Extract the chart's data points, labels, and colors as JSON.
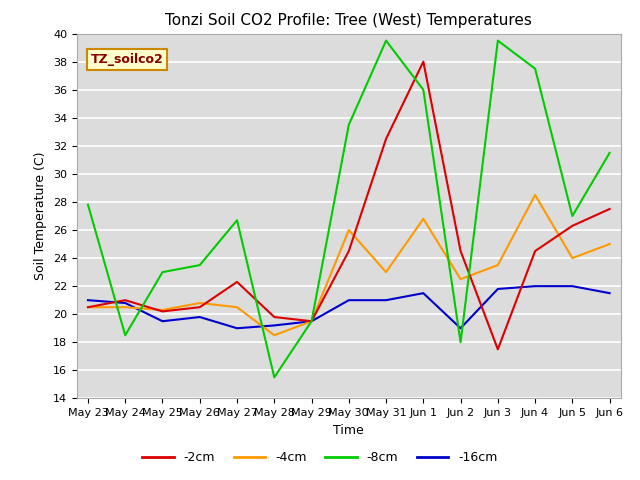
{
  "title": "Tonzi Soil CO2 Profile: Tree (West) Temperatures",
  "xlabel": "Time",
  "ylabel": "Soil Temperature (C)",
  "legend_label": "TZ_soilco2",
  "ylim": [
    14,
    40
  ],
  "background_color": "#dcdcdc",
  "series": {
    "-2cm": {
      "color": "#dd0000",
      "y": [
        20.5,
        21.0,
        20.2,
        20.5,
        22.3,
        19.8,
        19.5,
        24.5,
        32.5,
        38.0,
        24.5,
        17.5,
        24.5,
        26.3,
        27.5
      ]
    },
    "-4cm": {
      "color": "#ff9900",
      "y": [
        20.5,
        20.5,
        20.3,
        20.8,
        20.5,
        18.5,
        19.5,
        26.0,
        23.0,
        26.8,
        22.5,
        23.5,
        28.5,
        24.0,
        25.0
      ]
    },
    "-8cm": {
      "color": "#00cc00",
      "y": [
        27.8,
        18.5,
        23.0,
        23.5,
        26.7,
        15.5,
        19.5,
        33.5,
        39.5,
        36.0,
        18.0,
        39.5,
        37.5,
        27.0,
        31.5
      ]
    },
    "-16cm": {
      "color": "#0000cc",
      "y": [
        21.0,
        20.8,
        19.5,
        19.8,
        19.0,
        19.2,
        19.5,
        21.0,
        21.0,
        21.5,
        19.0,
        21.8,
        22.0,
        22.0,
        21.5
      ]
    }
  },
  "tick_labels": [
    "May 23",
    "May 24",
    "May 25",
    "May 26",
    "May 27",
    "May 28",
    "May 29",
    "May 30",
    "May 31",
    "Jun 1",
    "Jun 2",
    "Jun 3",
    "Jun 4",
    "Jun 5",
    "Jun 6"
  ],
  "yticks": [
    14,
    16,
    18,
    20,
    22,
    24,
    26,
    28,
    30,
    32,
    34,
    36,
    38,
    40
  ],
  "title_fontsize": 11,
  "axis_fontsize": 9,
  "tick_fontsize": 8
}
